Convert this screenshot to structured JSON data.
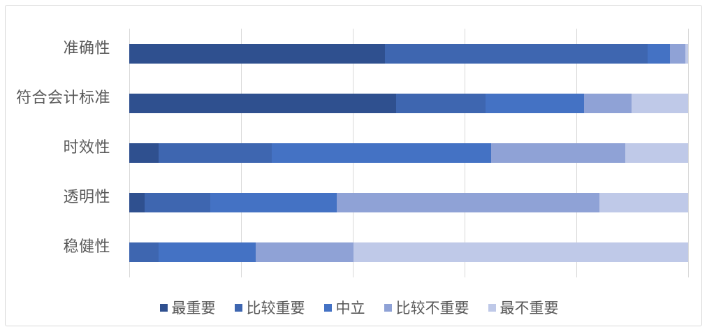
{
  "chart_data": {
    "type": "bar",
    "orientation": "horizontal-stacked",
    "title": "",
    "xlabel": "",
    "ylabel": "",
    "xlim": [
      0,
      100
    ],
    "unit": "percent",
    "gridline_step": 20,
    "grid": true,
    "legend_position": "bottom",
    "categories": [
      "准确性",
      "符合会计标准",
      "时效性",
      "透明性",
      "稳健性"
    ],
    "series": [
      {
        "name": "最重要",
        "color": "#2F508F",
        "values": [
          45.8,
          47.7,
          5.2,
          2.7,
          0.0
        ]
      },
      {
        "name": "比较重要",
        "color": "#3E66B0",
        "values": [
          47.0,
          16.1,
          20.3,
          11.8,
          5.3
        ]
      },
      {
        "name": "中立",
        "color": "#4472C4",
        "values": [
          4.0,
          17.6,
          39.3,
          22.6,
          17.3
        ]
      },
      {
        "name": "比较不重要",
        "color": "#8FA2D6",
        "values": [
          2.7,
          8.5,
          24.0,
          47.0,
          17.5
        ]
      },
      {
        "name": "最不重要",
        "color": "#BFC9E8",
        "values": [
          0.5,
          10.1,
          11.2,
          15.9,
          59.9
        ]
      }
    ]
  },
  "layout_colors": {
    "frame_border": "#D9D9D9",
    "gridline": "#D9D9D9",
    "label_text": "#595959",
    "background": "#FFFFFF"
  }
}
